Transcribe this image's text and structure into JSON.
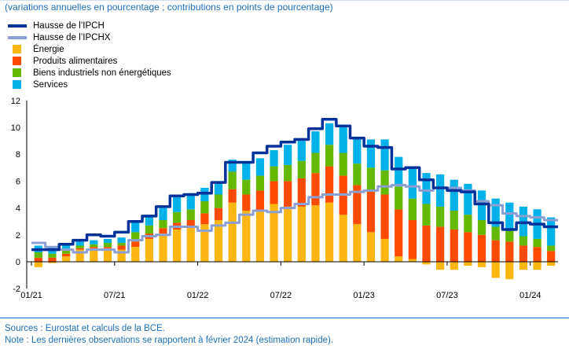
{
  "chart_data": {
    "type": "bar",
    "subtitle": "(variations annuelles en pourcentage ; contributions en points de pourcentage)",
    "xlabel": "",
    "ylabel": "",
    "ylim": [
      -2,
      12
    ],
    "yticks": [
      "-2",
      "0",
      "2",
      "4",
      "6",
      "8",
      "10",
      "12"
    ],
    "xtick_labels": [
      {
        "label": "01/21",
        "index": 0
      },
      {
        "label": "07/21",
        "index": 6
      },
      {
        "label": "01/22",
        "index": 12
      },
      {
        "label": "07/22",
        "index": 18
      },
      {
        "label": "01/23",
        "index": 24
      },
      {
        "label": "07/23",
        "index": 30
      },
      {
        "label": "01/24",
        "index": 36
      }
    ],
    "categories": [
      "01/21",
      "02/21",
      "03/21",
      "04/21",
      "05/21",
      "06/21",
      "07/21",
      "08/21",
      "09/21",
      "10/21",
      "11/21",
      "12/21",
      "01/22",
      "02/22",
      "03/22",
      "04/22",
      "05/22",
      "06/22",
      "07/22",
      "08/22",
      "09/22",
      "10/22",
      "11/22",
      "12/22",
      "01/23",
      "02/23",
      "03/23",
      "04/23",
      "05/23",
      "06/23",
      "07/23",
      "08/23",
      "09/23",
      "10/23",
      "11/23",
      "12/23",
      "01/24",
      "02/24"
    ],
    "series": [
      {
        "name": "Énergie",
        "kind": "bar",
        "color": "#fbb612",
        "values": [
          -0.4,
          -0.1,
          0.4,
          0.9,
          1.0,
          1.0,
          0.9,
          1.1,
          1.7,
          2.1,
          2.4,
          2.5,
          2.8,
          3.1,
          4.4,
          3.8,
          3.8,
          4.3,
          4.1,
          4.1,
          4.2,
          4.4,
          3.5,
          2.8,
          2.2,
          1.7,
          0.4,
          0.2,
          -0.2,
          -0.6,
          -0.6,
          -0.3,
          -0.4,
          -1.2,
          -1.3,
          -0.6,
          -0.6,
          -0.3
        ]
      },
      {
        "name": "Produits alimentaires",
        "kind": "bar",
        "color": "#ff4b00",
        "values": [
          0.3,
          0.3,
          0.2,
          0.1,
          0.1,
          0.1,
          0.3,
          0.4,
          0.4,
          0.4,
          0.5,
          0.6,
          0.8,
          0.9,
          1.0,
          1.2,
          1.5,
          1.7,
          1.9,
          2.1,
          2.4,
          2.7,
          2.9,
          2.9,
          3.0,
          3.3,
          3.5,
          2.9,
          2.7,
          2.6,
          2.4,
          2.2,
          2.0,
          1.6,
          1.5,
          1.2,
          1.1,
          0.8
        ]
      },
      {
        "name": "Biens industriels non énergétiques",
        "kind": "bar",
        "color": "#65b800",
        "values": [
          0.4,
          0.3,
          0.3,
          0.2,
          0.2,
          0.3,
          0.2,
          0.7,
          0.6,
          0.6,
          0.8,
          0.8,
          0.9,
          1.0,
          1.3,
          1.1,
          1.1,
          1.1,
          1.2,
          1.3,
          1.5,
          1.6,
          1.7,
          1.6,
          1.8,
          1.8,
          1.7,
          1.6,
          1.6,
          1.5,
          1.4,
          1.3,
          1.1,
          1.0,
          0.8,
          0.7,
          0.6,
          0.4
        ]
      },
      {
        "name": "Services",
        "kind": "bar",
        "color": "#00b1ea",
        "values": [
          0.5,
          0.5,
          0.4,
          0.3,
          0.3,
          0.3,
          0.4,
          0.7,
          0.8,
          0.9,
          1.1,
          1.2,
          1.0,
          1.0,
          0.9,
          1.2,
          1.3,
          1.2,
          1.5,
          1.5,
          1.6,
          1.6,
          2.0,
          2.0,
          2.1,
          2.3,
          2.2,
          2.4,
          2.3,
          2.4,
          2.3,
          2.3,
          2.2,
          2.1,
          2.1,
          2.2,
          2.2,
          2.1
        ]
      },
      {
        "name": "Hausse de l’IPCH",
        "kind": "line",
        "color": "#003299",
        "values": [
          0.9,
          0.9,
          1.3,
          1.6,
          2.0,
          1.9,
          2.2,
          3.0,
          3.4,
          4.1,
          4.9,
          5.0,
          5.1,
          5.9,
          7.4,
          7.4,
          8.1,
          8.6,
          8.9,
          9.1,
          9.9,
          10.6,
          10.1,
          9.2,
          8.6,
          8.5,
          6.9,
          7.0,
          6.1,
          5.5,
          5.3,
          5.2,
          4.3,
          2.9,
          2.4,
          2.9,
          2.8,
          2.6
        ]
      },
      {
        "name": "Hausse de l’IPCHX",
        "kind": "line",
        "color": "#8c9fd3",
        "values": [
          1.4,
          1.1,
          0.9,
          0.7,
          0.9,
          0.9,
          0.7,
          1.6,
          1.9,
          2.0,
          2.6,
          2.6,
          2.3,
          2.7,
          2.9,
          3.5,
          3.8,
          3.7,
          4.0,
          4.3,
          4.8,
          5.0,
          5.0,
          5.2,
          5.3,
          5.6,
          5.7,
          5.6,
          5.3,
          5.5,
          5.5,
          5.3,
          4.5,
          4.2,
          3.6,
          3.4,
          3.3,
          3.1
        ]
      }
    ],
    "grid": false,
    "legend": "top-left"
  },
  "footer": {
    "sources": "Sources : Eurostat et calculs de la BCE.",
    "note": "Note : Les dernières observations se rapportent à février 2024 (estimation rapide)."
  }
}
